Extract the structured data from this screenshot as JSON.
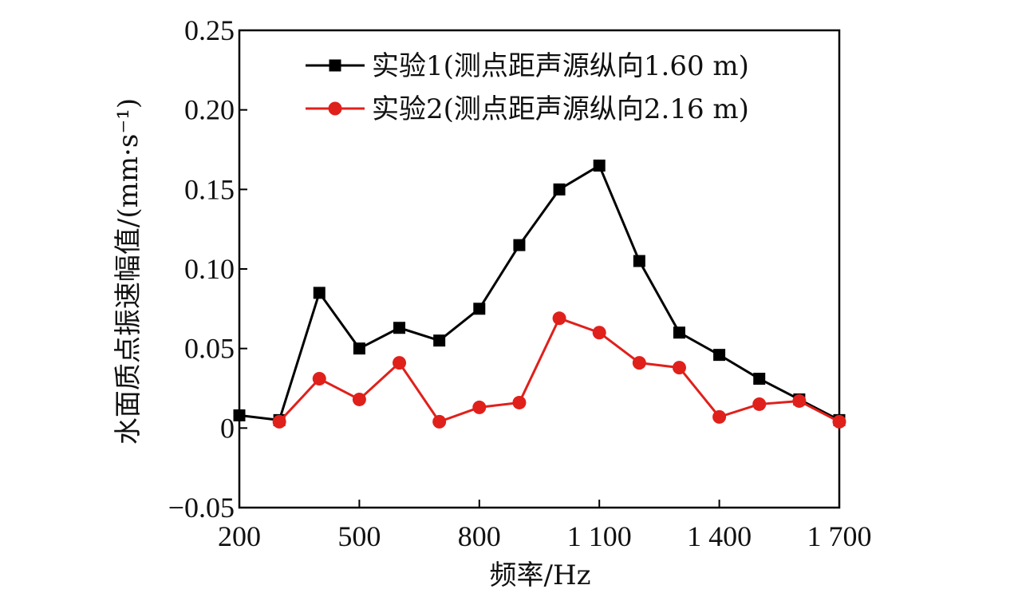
{
  "chart_data": {
    "type": "line",
    "title": "",
    "xlabel": "频率/Hz",
    "ylabel": "水面质点振速幅值/(mm·s⁻¹)",
    "xlim": [
      200,
      1700
    ],
    "ylim": [
      -0.05,
      0.25
    ],
    "xticks": [
      200,
      500,
      800,
      1100,
      1400,
      1700
    ],
    "xtick_labels": [
      "200",
      "500",
      "800",
      "1 100",
      "1 400",
      "1 700"
    ],
    "yticks": [
      -0.05,
      0,
      0.05,
      0.1,
      0.15,
      0.2,
      0.25
    ],
    "ytick_labels": [
      "−0.05",
      "0",
      "0.05",
      "0.10",
      "0.15",
      "0.20",
      "0.25"
    ],
    "grid": false,
    "legend_position": "top-right",
    "x": [
      200,
      300,
      400,
      500,
      600,
      700,
      800,
      900,
      1000,
      1100,
      1200,
      1300,
      1400,
      1500,
      1600,
      1700
    ],
    "series": [
      {
        "name": "实验1(测点距声源纵向1.60 m)",
        "color": "#000000",
        "marker": "square",
        "values": [
          0.008,
          0.005,
          0.085,
          0.05,
          0.063,
          0.055,
          0.075,
          0.115,
          0.15,
          0.165,
          0.105,
          0.06,
          0.046,
          0.031,
          0.018,
          0.005
        ]
      },
      {
        "name": "实验2(测点距声源纵向2.16 m)",
        "color": "#e0201b",
        "marker": "circle",
        "x": [
          300,
          400,
          500,
          600,
          700,
          800,
          900,
          1000,
          1100,
          1200,
          1300,
          1400,
          1500,
          1600,
          1700
        ],
        "values": [
          0.004,
          0.031,
          0.018,
          0.041,
          0.004,
          0.013,
          0.016,
          0.069,
          0.06,
          0.041,
          0.038,
          0.007,
          0.015,
          0.017,
          0.004
        ]
      }
    ]
  }
}
